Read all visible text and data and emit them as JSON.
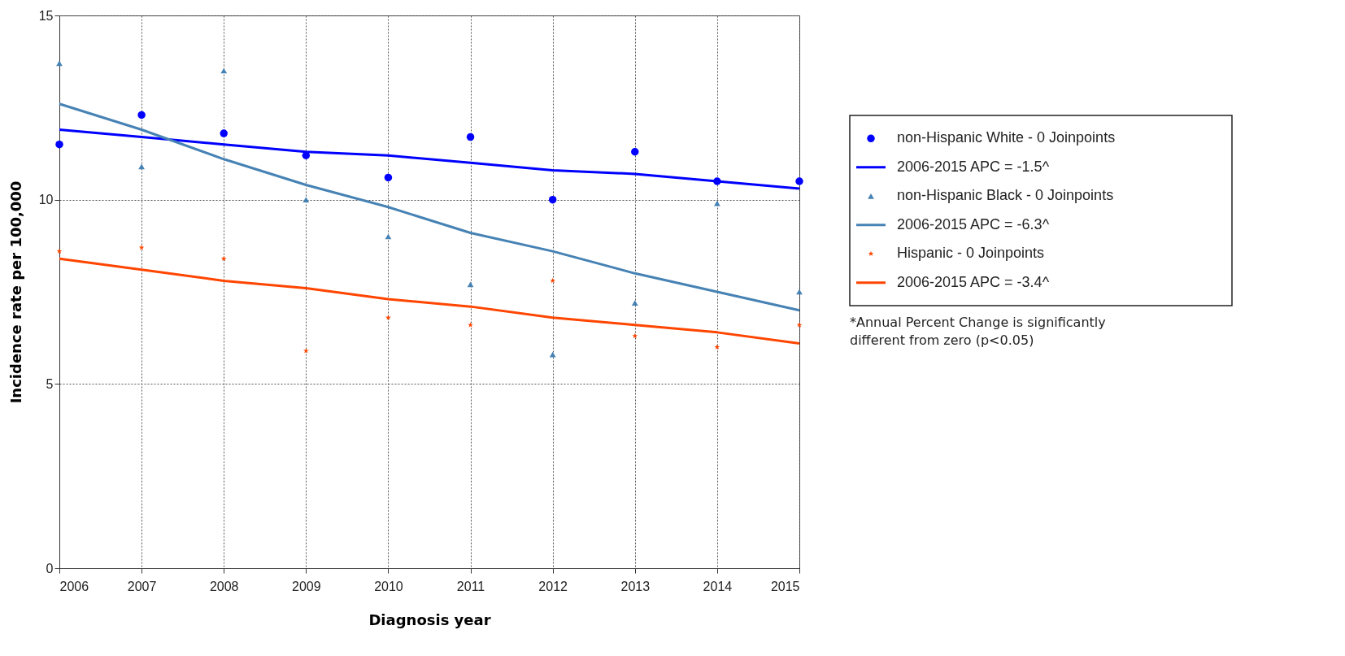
{
  "chart_data": {
    "type": "scatter",
    "xlabel": "Diagnosis year",
    "ylabel": "Incidence rate per 100,000",
    "x": [
      2006,
      2007,
      2008,
      2009,
      2010,
      2011,
      2012,
      2013,
      2014,
      2015
    ],
    "xlim": [
      2006,
      2015
    ],
    "xticks": [
      2006,
      2007,
      2008,
      2009,
      2010,
      2011,
      2012,
      2013,
      2014,
      2015
    ],
    "ylim": [
      0,
      15
    ],
    "yticks": [
      0,
      5,
      10,
      15
    ],
    "grid": true,
    "legend": "right",
    "series": [
      {
        "name": "non-Hispanic White - 0 Joinpoints",
        "color": "#0000ff",
        "marker": "circle",
        "values": [
          11.5,
          12.3,
          11.8,
          11.2,
          10.6,
          11.7,
          10.0,
          11.3,
          10.5,
          10.5
        ]
      },
      {
        "type": "line",
        "name": "2006-2015 APC  = -1.5^",
        "color": "#0000ff",
        "values": [
          11.9,
          11.7,
          11.5,
          11.3,
          11.2,
          11.0,
          10.8,
          10.7,
          10.5,
          10.3
        ]
      },
      {
        "name": "non-Hispanic Black - 0 Joinpoints",
        "color": "#4682b4",
        "marker": "triangle",
        "values": [
          13.7,
          10.9,
          13.5,
          10.0,
          9.0,
          7.7,
          5.8,
          7.2,
          9.9,
          7.5
        ]
      },
      {
        "type": "line",
        "name": "2006-2015 APC  = -6.3^",
        "color": "#4682b4",
        "values": [
          12.6,
          11.9,
          11.1,
          10.4,
          9.8,
          9.1,
          8.6,
          8.0,
          7.5,
          7.0
        ]
      },
      {
        "name": "Hispanic - 0 Joinpoints",
        "color": "#ff4500",
        "marker": "star",
        "values": [
          8.6,
          8.7,
          8.4,
          5.9,
          6.8,
          6.6,
          7.8,
          6.3,
          6.0,
          6.6
        ]
      },
      {
        "type": "line",
        "name": "2006-2015 APC  = -3.4^",
        "color": "#ff4500",
        "values": [
          8.4,
          8.1,
          7.8,
          7.6,
          7.3,
          7.1,
          6.8,
          6.6,
          6.4,
          6.1
        ]
      }
    ],
    "annotations": [
      "*Annual Percent Change is significantly different from zero (p<0.05)"
    ]
  }
}
